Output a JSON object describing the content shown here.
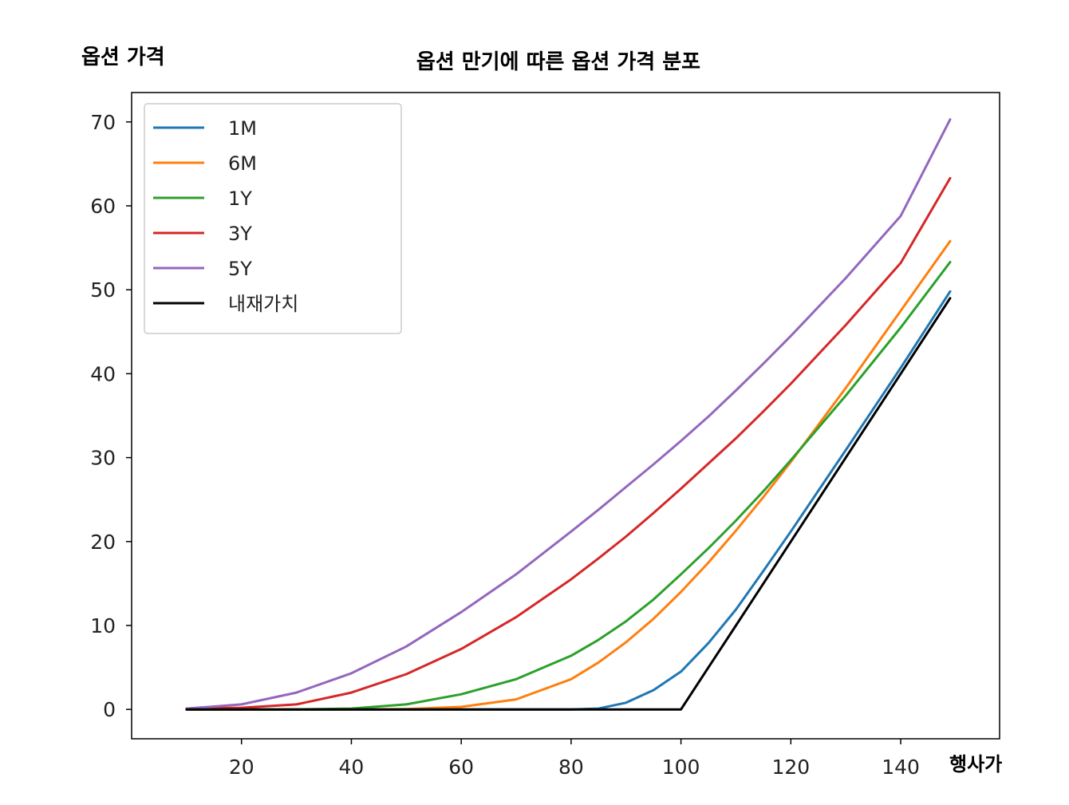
{
  "chart_data": {
    "type": "line",
    "title": "옵션 만기에 따른 옵션 가격 분포",
    "xlabel": "행사가",
    "ylabel": "옵션 가격",
    "xlim": [
      0,
      158
    ],
    "ylim": [
      -3.5,
      73.5
    ],
    "xticks": [
      20,
      40,
      60,
      80,
      100,
      120,
      140
    ],
    "yticks": [
      0,
      10,
      20,
      30,
      40,
      50,
      60,
      70
    ],
    "grid": false,
    "legend_position": "top-left",
    "x": [
      10,
      20,
      30,
      40,
      50,
      60,
      70,
      80,
      85,
      90,
      95,
      100,
      105,
      110,
      115,
      120,
      130,
      140,
      149
    ],
    "series": [
      {
        "name": "1M",
        "color": "#1f77b4",
        "values": [
          0,
          0,
          0,
          0,
          0,
          0,
          0,
          0,
          0.1,
          0.8,
          2.3,
          4.5,
          7.9,
          11.9,
          16.5,
          21.2,
          30.9,
          40.7,
          49.8
        ]
      },
      {
        "name": "6M",
        "color": "#ff7f0e",
        "values": [
          0,
          0,
          0,
          0,
          0.05,
          0.3,
          1.2,
          3.6,
          5.6,
          8.0,
          10.8,
          14.0,
          17.5,
          21.3,
          25.3,
          29.5,
          38.3,
          47.5,
          55.8
        ]
      },
      {
        "name": "1Y",
        "color": "#2ca02c",
        "values": [
          0,
          0,
          0,
          0.1,
          0.6,
          1.8,
          3.6,
          6.4,
          8.3,
          10.5,
          13.1,
          16.1,
          19.2,
          22.5,
          26.0,
          29.7,
          37.4,
          45.5,
          53.3
        ]
      },
      {
        "name": "3Y",
        "color": "#d62728",
        "values": [
          0.1,
          0.2,
          0.6,
          2.0,
          4.2,
          7.2,
          11.0,
          15.5,
          18.0,
          20.6,
          23.4,
          26.3,
          29.3,
          32.3,
          35.5,
          38.8,
          45.8,
          53.2,
          63.3
        ]
      },
      {
        "name": "5Y",
        "color": "#9467bd",
        "values": [
          0.1,
          0.6,
          2.0,
          4.3,
          7.5,
          11.6,
          16.1,
          21.2,
          23.8,
          26.5,
          29.2,
          32.0,
          34.9,
          38.0,
          41.2,
          44.5,
          51.4,
          58.8,
          70.3
        ]
      },
      {
        "name": "내재가치",
        "color": "#000000",
        "values": [
          0,
          0,
          0,
          0,
          0,
          0,
          0,
          0,
          0,
          0,
          0,
          0,
          5,
          10,
          15,
          20,
          30,
          40,
          49
        ]
      }
    ]
  }
}
